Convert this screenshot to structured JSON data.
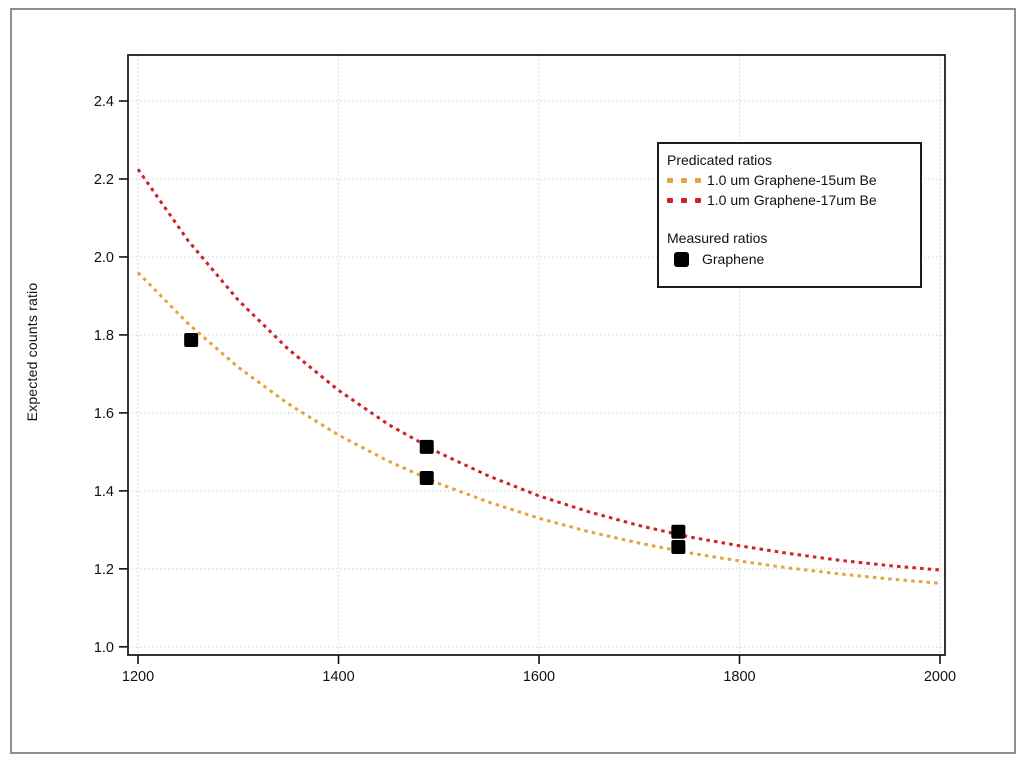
{
  "figure": {
    "background": "#ffffff",
    "border_color": "#8f8f8f"
  },
  "chart_data": {
    "type": "line",
    "title": "",
    "xlabel": "",
    "ylabel": "Expected counts ratio",
    "xlim": [
      1190,
      2005
    ],
    "ylim": [
      0.979,
      2.518
    ],
    "xticks": [
      1200,
      1400,
      1600,
      1800,
      2000
    ],
    "xtick_labels": [
      "1200",
      "1400",
      "1600",
      "1800",
      "2000"
    ],
    "yticks": [
      1.0,
      1.2,
      1.4,
      1.6,
      1.8,
      2.0,
      2.2,
      2.4
    ],
    "ytick_labels": [
      "1.0",
      "1.2",
      "1.4",
      "1.6",
      "1.8",
      "2.0",
      "2.2",
      "2.4"
    ],
    "grid": true,
    "grid_color": "#cbcfe8",
    "axis_color": "#111111",
    "legend_position": "upper right",
    "series": [
      {
        "name": "1.0 um Graphene-15um Be",
        "style": "dotted",
        "color": "#e5a33d",
        "x": [
          1200,
          1250,
          1300,
          1350,
          1400,
          1450,
          1500,
          1550,
          1600,
          1650,
          1700,
          1750,
          1800,
          1850,
          1900,
          1950,
          2000
        ],
        "y": [
          1.96,
          1.829,
          1.717,
          1.623,
          1.543,
          1.476,
          1.419,
          1.371,
          1.33,
          1.295,
          1.266,
          1.241,
          1.22,
          1.202,
          1.187,
          1.174,
          1.163
        ]
      },
      {
        "name": "1.0 um Graphene-17um Be",
        "style": "dotted",
        "color": "#ce2127",
        "x": [
          1200,
          1250,
          1300,
          1350,
          1400,
          1450,
          1500,
          1550,
          1600,
          1650,
          1700,
          1750,
          1800,
          1850,
          1900,
          1950,
          2000
        ],
        "y": [
          2.225,
          2.042,
          1.889,
          1.763,
          1.658,
          1.57,
          1.498,
          1.438,
          1.387,
          1.346,
          1.311,
          1.282,
          1.259,
          1.239,
          1.222,
          1.208,
          1.197
        ]
      }
    ],
    "measured": {
      "name": "Graphene",
      "marker": "square",
      "color": "#000000",
      "points": [
        [
          1253,
          1.787
        ],
        [
          1488,
          1.513
        ],
        [
          1488,
          1.433
        ],
        [
          1739,
          1.295
        ],
        [
          1739,
          1.256
        ]
      ]
    }
  },
  "legend": {
    "predicted_title": "Predicated ratios",
    "measured_title": "Measured ratios"
  }
}
